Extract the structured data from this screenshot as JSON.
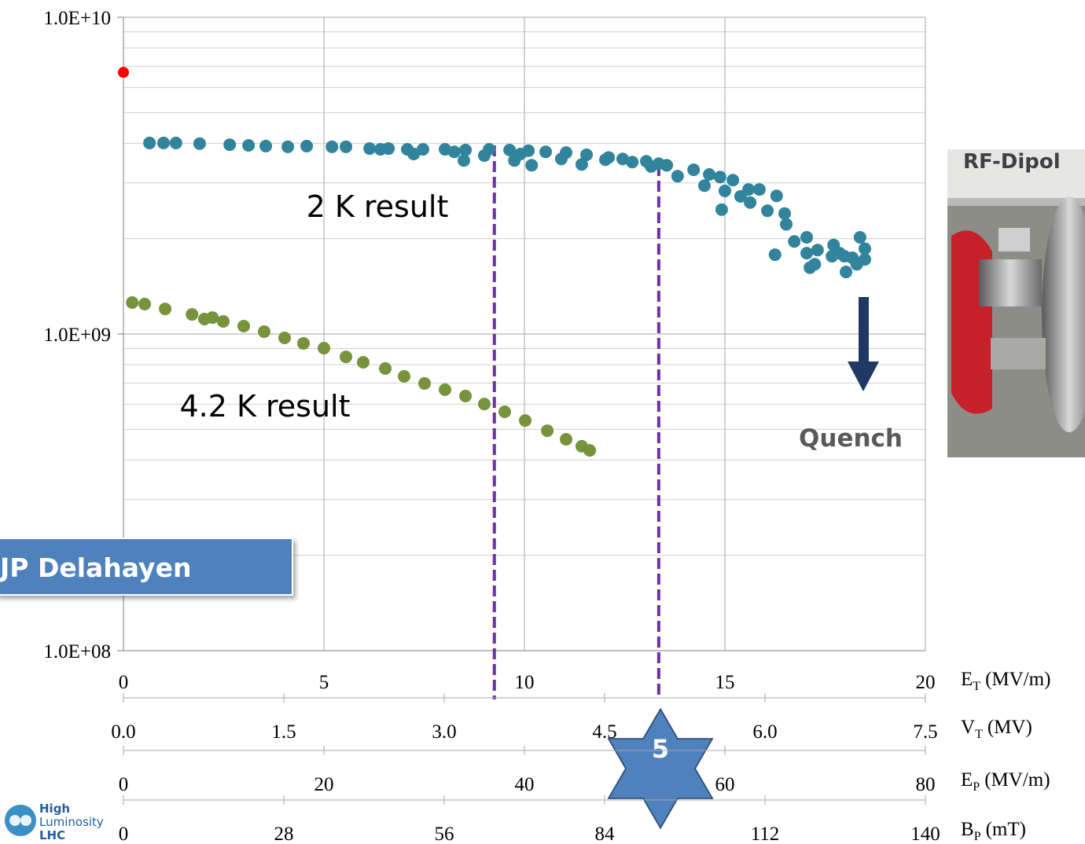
{
  "chart_data": {
    "type": "scatter",
    "log_y": true,
    "grid": true,
    "minor_grid": true,
    "ylim": [
      100000000,
      10000000000
    ],
    "yticks": [
      {
        "value": 100000000,
        "label": "1.0E+08"
      },
      {
        "value": 1000000000,
        "label": "1.0E+09"
      },
      {
        "value": 10000000000,
        "label": "1.0E+10"
      }
    ],
    "xlim": [
      0,
      20
    ],
    "xticks": [
      0,
      5,
      10,
      15,
      20
    ],
    "xlabel": {
      "symbol": "E",
      "sub": "T",
      "unit": "(MV/m)"
    },
    "secondary_x_axes": [
      {
        "lim": [
          0,
          7.5
        ],
        "ticks": [
          {
            "value": 0,
            "label": "0.0"
          },
          1.5,
          {
            "value": 3,
            "label": "3.0"
          },
          4.5,
          {
            "value": 6,
            "label": "6.0"
          },
          7.5
        ],
        "label": {
          "symbol": "V",
          "sub": "T",
          "unit": "(MV)"
        }
      },
      {
        "lim": [
          0,
          80
        ],
        "ticks": [
          0,
          20,
          40,
          60,
          80
        ],
        "label": {
          "symbol": "E",
          "sub": "P",
          "unit": "(MV/m)"
        }
      },
      {
        "lim": [
          0,
          140
        ],
        "ticks": [
          0,
          28,
          56,
          84,
          112,
          140
        ],
        "label": {
          "symbol": "B",
          "sub": "P",
          "unit": "(mT)"
        }
      }
    ],
    "series": [
      {
        "name": "2 K result",
        "color": "#31849b",
        "x": [
          0.65,
          1.0,
          1.31,
          1.9,
          2.65,
          3.12,
          3.55,
          4.1,
          4.57,
          5.2,
          5.55,
          6.14,
          6.41,
          6.61,
          7.08,
          7.24,
          7.47,
          8.02,
          8.25,
          8.49,
          8.53,
          9.0,
          9.12,
          9.63,
          9.75,
          9.9,
          10.1,
          10.18,
          10.53,
          10.92,
          11.04,
          11.43,
          11.55,
          12.02,
          12.1,
          12.45,
          12.69,
          13.04,
          13.16,
          13.35,
          13.55,
          13.82,
          14.22,
          14.49,
          14.61,
          14.88,
          14.92,
          15.0,
          15.2,
          15.39,
          15.59,
          15.63,
          15.86,
          16.06,
          16.29,
          16.49,
          16.53,
          16.73,
          16.25,
          17.04,
          17.04,
          17.12,
          17.24,
          17.31,
          17.67,
          17.71,
          17.86,
          17.98,
          18.02,
          18.18,
          18.37,
          18.29,
          18.49,
          18.49
        ],
        "values": [
          4010000000,
          4010000000,
          4010000000,
          3990000000,
          3960000000,
          3940000000,
          3920000000,
          3900000000,
          3920000000,
          3900000000,
          3900000000,
          3850000000,
          3830000000,
          3850000000,
          3830000000,
          3700000000,
          3830000000,
          3830000000,
          3760000000,
          3530000000,
          3810000000,
          3660000000,
          3830000000,
          3810000000,
          3530000000,
          3700000000,
          3790000000,
          3410000000,
          3760000000,
          3570000000,
          3740000000,
          3430000000,
          3680000000,
          3550000000,
          3610000000,
          3570000000,
          3490000000,
          3510000000,
          3380000000,
          3450000000,
          3410000000,
          3150000000,
          3300000000,
          2940000000,
          3190000000,
          3130000000,
          2470000000,
          2830000000,
          3060000000,
          2720000000,
          2860000000,
          2600000000,
          2860000000,
          2450000000,
          2730000000,
          2400000000,
          2220000000,
          1960000000,
          1780000000,
          2020000000,
          1800000000,
          1620000000,
          1660000000,
          1840000000,
          1760000000,
          1910000000,
          1800000000,
          1760000000,
          1570000000,
          1740000000,
          2020000000,
          1660000000,
          1720000000,
          1860000000
        ]
      },
      {
        "name": "4.2 K result",
        "color": "#77933c",
        "x": [
          0.22,
          0.53,
          1.04,
          1.71,
          2.02,
          2.22,
          2.49,
          3.0,
          3.51,
          4.02,
          4.49,
          5.0,
          5.55,
          5.98,
          6.53,
          7.0,
          7.51,
          8.02,
          8.53,
          9.0,
          9.51,
          10.02,
          10.57,
          11.04,
          11.43,
          11.63
        ],
        "values": [
          1257000000,
          1243000000,
          1200000000,
          1153000000,
          1115000000,
          1127000000,
          1096000000,
          1059000000,
          1017000000,
          972000000,
          934000000,
          902000000,
          847000000,
          814000000,
          778000000,
          735000000,
          698000000,
          667000000,
          637000000,
          601000000,
          568000000,
          533000000,
          495000000,
          465000000,
          442000000,
          429000000
        ]
      },
      {
        "color": "#ff0000",
        "x": [
          0
        ],
        "values": [
          6700000000
        ]
      }
    ],
    "vlines": [
      9.25,
      13.35
    ],
    "annotations": {
      "quench": "Quench",
      "star": "5",
      "box": "JP Delahayen",
      "photo": "RF-Dipol"
    },
    "logo": [
      "High",
      "Luminosity",
      "LHC"
    ]
  }
}
